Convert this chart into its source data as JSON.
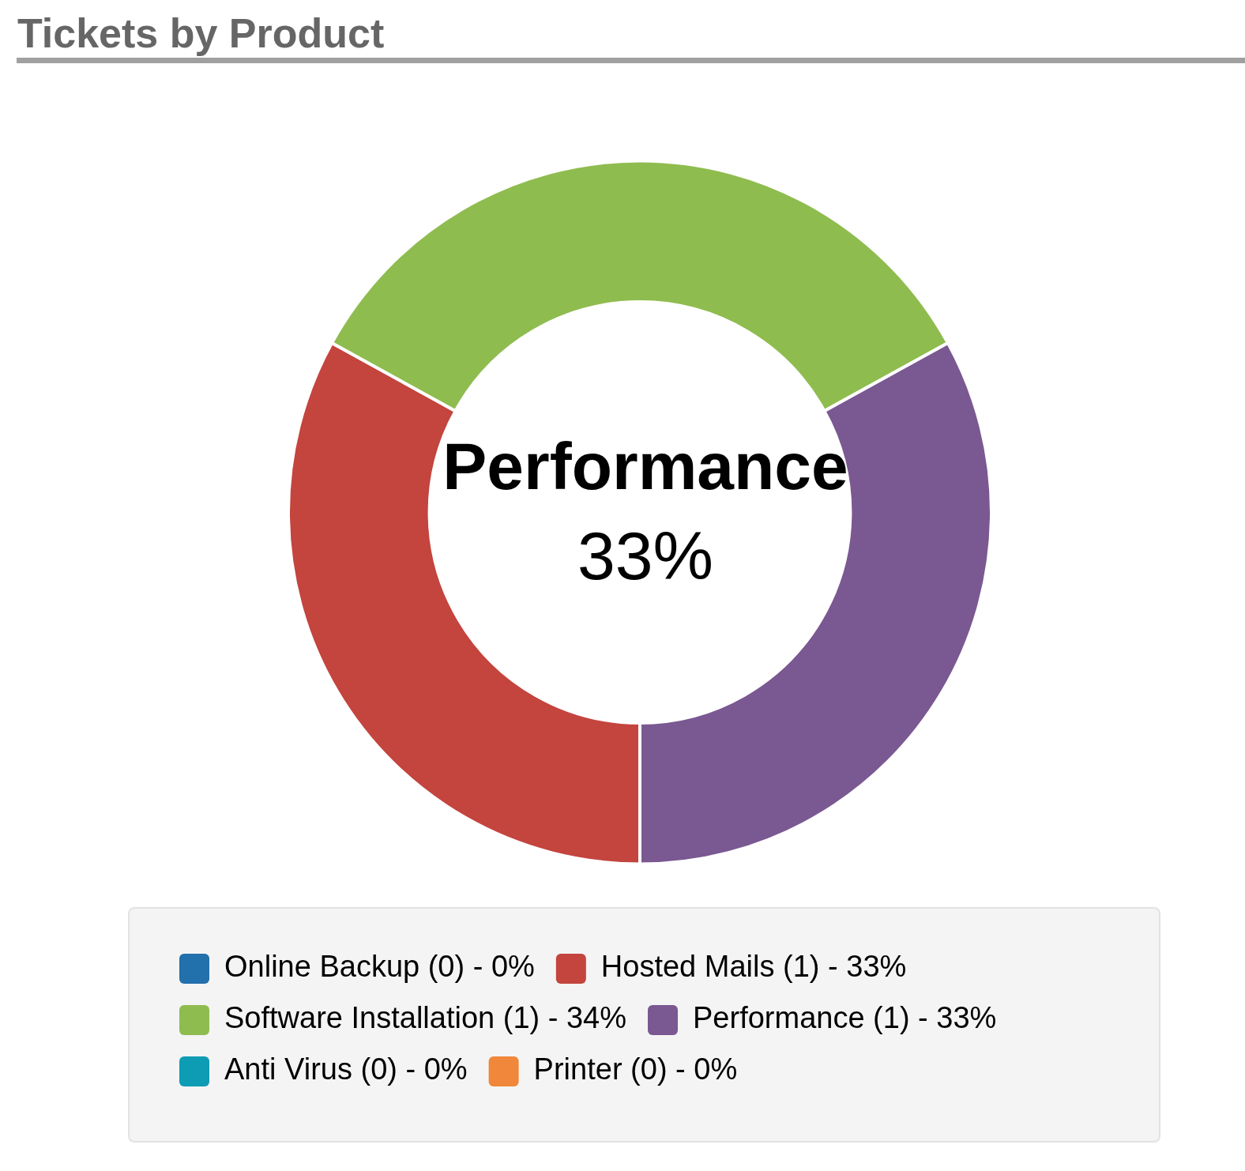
{
  "chart_data": {
    "type": "donut",
    "title": "Tickets by Product",
    "categories": [
      "Online Backup (0) - 0%",
      "Hosted Mails (1) - 33%",
      "Software Installation (1) - 34%",
      "Performance (1) - 33%",
      "Anti Virus (0) - 0%",
      "Printer (0) - 0%"
    ],
    "values": [
      0,
      33,
      34,
      33,
      0,
      0
    ],
    "colors": [
      "#2270ac",
      "#c4443e",
      "#8fbc4f",
      "#7a5892",
      "#0e9bb4",
      "#f0873a"
    ],
    "annotations": [
      "Performance",
      "33%"
    ],
    "legend": "bottom"
  }
}
